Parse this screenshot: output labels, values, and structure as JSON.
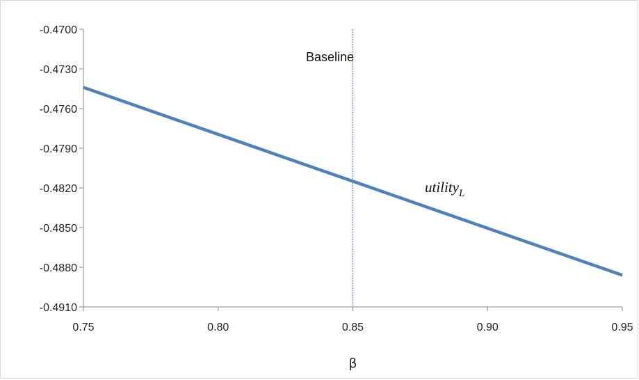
{
  "chart_data": {
    "type": "line",
    "x_ticks": [
      0.75,
      0.8,
      0.85,
      0.9,
      0.95
    ],
    "y_ticks": [
      -0.47,
      -0.473,
      -0.476,
      -0.479,
      -0.482,
      -0.485,
      -0.488,
      -0.491
    ],
    "x_tick_labels": [
      "0.75",
      "0.80",
      "0.85",
      "0.90",
      "0.95"
    ],
    "y_tick_labels": [
      "-0.4700",
      "-0.4730",
      "-0.4760",
      "-0.4790",
      "-0.4820",
      "-0.4850",
      "-0.4880",
      "-0.4910"
    ],
    "xlim": [
      0.75,
      0.95
    ],
    "ylim": [
      -0.491,
      -0.47
    ],
    "xlabel": "β",
    "ylabel": "",
    "grid": false,
    "series": [
      {
        "label_main": "utility",
        "label_sub": "L",
        "color": "#4f81bd",
        "points": [
          [
            0.75,
            -0.4744
          ],
          [
            0.95,
            -0.4886
          ]
        ]
      }
    ],
    "reference_line": {
      "x": 0.85,
      "label": "Baseline",
      "color": "#4f81bd"
    }
  }
}
